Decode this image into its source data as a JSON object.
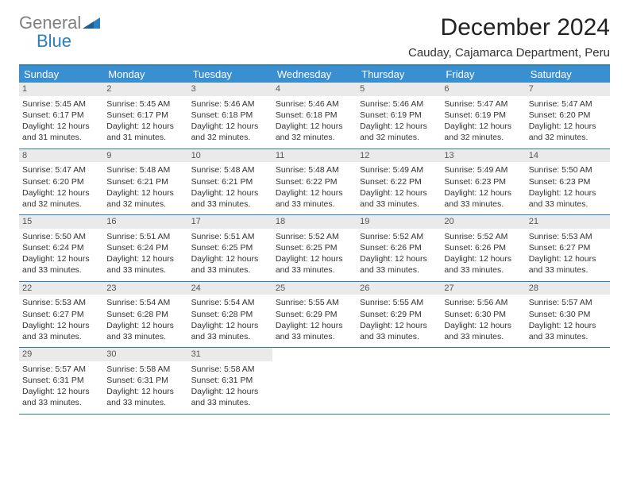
{
  "logo": {
    "part1": "General",
    "part2": "Blue"
  },
  "title": "December 2024",
  "subtitle": "Cauday, Cajamarca Department, Peru",
  "colors": {
    "header_bg": "#3a8fd0",
    "border": "#2a7fbf",
    "daynum_bg": "#eaeaea",
    "text": "#333333",
    "logo_gray": "#808080",
    "logo_blue": "#2a7fbf"
  },
  "weekdays": [
    "Sunday",
    "Monday",
    "Tuesday",
    "Wednesday",
    "Thursday",
    "Friday",
    "Saturday"
  ],
  "days": [
    {
      "n": "1",
      "sr": "5:45 AM",
      "ss": "6:17 PM",
      "dl": "12 hours and 31 minutes."
    },
    {
      "n": "2",
      "sr": "5:45 AM",
      "ss": "6:17 PM",
      "dl": "12 hours and 31 minutes."
    },
    {
      "n": "3",
      "sr": "5:46 AM",
      "ss": "6:18 PM",
      "dl": "12 hours and 32 minutes."
    },
    {
      "n": "4",
      "sr": "5:46 AM",
      "ss": "6:18 PM",
      "dl": "12 hours and 32 minutes."
    },
    {
      "n": "5",
      "sr": "5:46 AM",
      "ss": "6:19 PM",
      "dl": "12 hours and 32 minutes."
    },
    {
      "n": "6",
      "sr": "5:47 AM",
      "ss": "6:19 PM",
      "dl": "12 hours and 32 minutes."
    },
    {
      "n": "7",
      "sr": "5:47 AM",
      "ss": "6:20 PM",
      "dl": "12 hours and 32 minutes."
    },
    {
      "n": "8",
      "sr": "5:47 AM",
      "ss": "6:20 PM",
      "dl": "12 hours and 32 minutes."
    },
    {
      "n": "9",
      "sr": "5:48 AM",
      "ss": "6:21 PM",
      "dl": "12 hours and 32 minutes."
    },
    {
      "n": "10",
      "sr": "5:48 AM",
      "ss": "6:21 PM",
      "dl": "12 hours and 33 minutes."
    },
    {
      "n": "11",
      "sr": "5:48 AM",
      "ss": "6:22 PM",
      "dl": "12 hours and 33 minutes."
    },
    {
      "n": "12",
      "sr": "5:49 AM",
      "ss": "6:22 PM",
      "dl": "12 hours and 33 minutes."
    },
    {
      "n": "13",
      "sr": "5:49 AM",
      "ss": "6:23 PM",
      "dl": "12 hours and 33 minutes."
    },
    {
      "n": "14",
      "sr": "5:50 AM",
      "ss": "6:23 PM",
      "dl": "12 hours and 33 minutes."
    },
    {
      "n": "15",
      "sr": "5:50 AM",
      "ss": "6:24 PM",
      "dl": "12 hours and 33 minutes."
    },
    {
      "n": "16",
      "sr": "5:51 AM",
      "ss": "6:24 PM",
      "dl": "12 hours and 33 minutes."
    },
    {
      "n": "17",
      "sr": "5:51 AM",
      "ss": "6:25 PM",
      "dl": "12 hours and 33 minutes."
    },
    {
      "n": "18",
      "sr": "5:52 AM",
      "ss": "6:25 PM",
      "dl": "12 hours and 33 minutes."
    },
    {
      "n": "19",
      "sr": "5:52 AM",
      "ss": "6:26 PM",
      "dl": "12 hours and 33 minutes."
    },
    {
      "n": "20",
      "sr": "5:52 AM",
      "ss": "6:26 PM",
      "dl": "12 hours and 33 minutes."
    },
    {
      "n": "21",
      "sr": "5:53 AM",
      "ss": "6:27 PM",
      "dl": "12 hours and 33 minutes."
    },
    {
      "n": "22",
      "sr": "5:53 AM",
      "ss": "6:27 PM",
      "dl": "12 hours and 33 minutes."
    },
    {
      "n": "23",
      "sr": "5:54 AM",
      "ss": "6:28 PM",
      "dl": "12 hours and 33 minutes."
    },
    {
      "n": "24",
      "sr": "5:54 AM",
      "ss": "6:28 PM",
      "dl": "12 hours and 33 minutes."
    },
    {
      "n": "25",
      "sr": "5:55 AM",
      "ss": "6:29 PM",
      "dl": "12 hours and 33 minutes."
    },
    {
      "n": "26",
      "sr": "5:55 AM",
      "ss": "6:29 PM",
      "dl": "12 hours and 33 minutes."
    },
    {
      "n": "27",
      "sr": "5:56 AM",
      "ss": "6:30 PM",
      "dl": "12 hours and 33 minutes."
    },
    {
      "n": "28",
      "sr": "5:57 AM",
      "ss": "6:30 PM",
      "dl": "12 hours and 33 minutes."
    },
    {
      "n": "29",
      "sr": "5:57 AM",
      "ss": "6:31 PM",
      "dl": "12 hours and 33 minutes."
    },
    {
      "n": "30",
      "sr": "5:58 AM",
      "ss": "6:31 PM",
      "dl": "12 hours and 33 minutes."
    },
    {
      "n": "31",
      "sr": "5:58 AM",
      "ss": "6:31 PM",
      "dl": "12 hours and 33 minutes."
    }
  ],
  "labels": {
    "sunrise": "Sunrise: ",
    "sunset": "Sunset: ",
    "daylight": "Daylight: "
  },
  "layout": {
    "cols": 7,
    "first_day_col": 0
  }
}
